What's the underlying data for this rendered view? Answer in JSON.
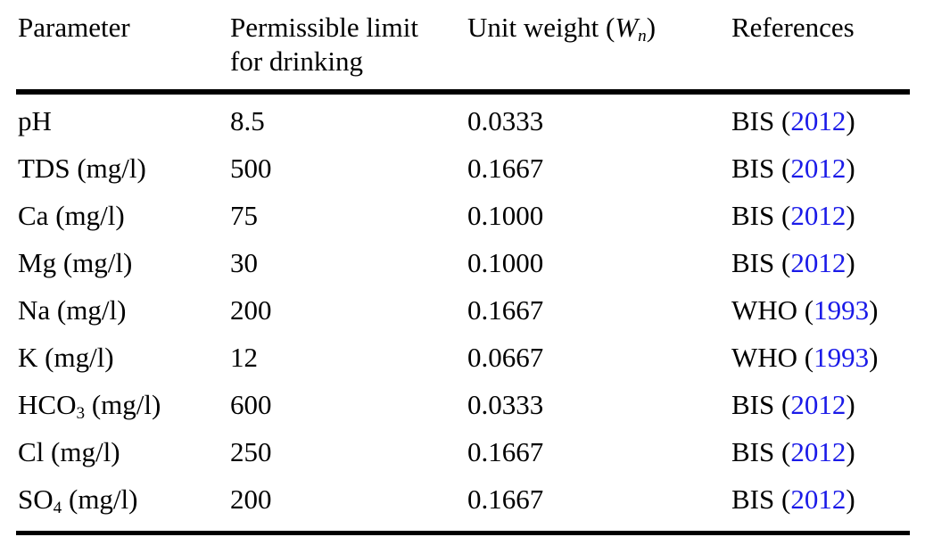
{
  "colors": {
    "link_blue": "#1a1ae8",
    "text": "#000000",
    "rule": "#000000",
    "background": "#ffffff"
  },
  "table": {
    "header": {
      "parameter": "Parameter",
      "permissible_limit_line1": "Permissible limit",
      "permissible_limit_line2": "for drinking",
      "unit_weight_pre": "Unit weight (",
      "unit_weight_symbol": "W",
      "unit_weight_subscript": "n",
      "unit_weight_post": ")",
      "references": "References"
    },
    "rows": [
      {
        "param": "pH",
        "param_sub": "",
        "param_unit": "",
        "limit": "8.5",
        "weight": "0.0333",
        "ref_pre": "BIS (",
        "ref_year": "2012",
        "ref_post": ")"
      },
      {
        "param": "TDS",
        "param_sub": "",
        "param_unit": " (mg/l)",
        "limit": "500",
        "weight": "0.1667",
        "ref_pre": "BIS (",
        "ref_year": "2012",
        "ref_post": ")"
      },
      {
        "param": "Ca",
        "param_sub": "",
        "param_unit": " (mg/l)",
        "limit": "75",
        "weight": "0.1000",
        "ref_pre": "BIS (",
        "ref_year": "2012",
        "ref_post": ")"
      },
      {
        "param": "Mg",
        "param_sub": "",
        "param_unit": " (mg/l)",
        "limit": "30",
        "weight": "0.1000",
        "ref_pre": "BIS (",
        "ref_year": "2012",
        "ref_post": ")"
      },
      {
        "param": "Na",
        "param_sub": "",
        "param_unit": " (mg/l)",
        "limit": "200",
        "weight": "0.1667",
        "ref_pre": "WHO (",
        "ref_year": "1993",
        "ref_post": ")"
      },
      {
        "param": "K",
        "param_sub": "",
        "param_unit": " (mg/l)",
        "limit": "12",
        "weight": "0.0667",
        "ref_pre": "WHO (",
        "ref_year": "1993",
        "ref_post": ")"
      },
      {
        "param": "HCO",
        "param_sub": "3",
        "param_unit": " (mg/l)",
        "limit": "600",
        "weight": "0.0333",
        "ref_pre": "BIS (",
        "ref_year": "2012",
        "ref_post": ")"
      },
      {
        "param": "Cl",
        "param_sub": "",
        "param_unit": " (mg/l)",
        "limit": "250",
        "weight": "0.1667",
        "ref_pre": "BIS (",
        "ref_year": "2012",
        "ref_post": ")"
      },
      {
        "param": "SO",
        "param_sub": "4",
        "param_unit": " (mg/l)",
        "limit": "200",
        "weight": "0.1667",
        "ref_pre": "BIS (",
        "ref_year": "2012",
        "ref_post": ")"
      }
    ]
  }
}
